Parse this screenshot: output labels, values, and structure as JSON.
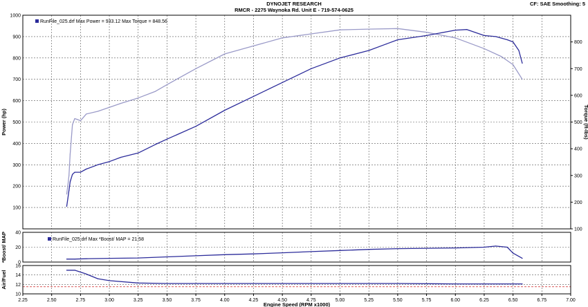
{
  "header": {
    "title": "DYNOJET RESEARCH",
    "subtitle": "RMCR - 2275 Waynoka Rd. Unit E - 719-574-0625",
    "cf_smoothing": "CF: SAE  Smoothing: 5"
  },
  "chart_data": [
    {
      "type": "line",
      "panel": "power-torque",
      "legend_text": "RunFile_025.drf Max Power = 933.12     Max Torque = 848.56",
      "ylabel_left": "Power (hp)",
      "ylabel_right": "Torque (ft-lbs)",
      "xlim": [
        2.25,
        7.0
      ],
      "ylim_left": [
        0,
        1000
      ],
      "ylim_right": [
        100,
        900
      ],
      "yticks_left": [
        "100",
        "200",
        "300",
        "400",
        "500",
        "600",
        "700",
        "800",
        "900",
        "1000"
      ],
      "yticks_right": [
        "100",
        "200",
        "300",
        "400",
        "500",
        "600",
        "700",
        "800"
      ],
      "grid": true,
      "series": [
        {
          "role": "power",
          "axis": "left",
          "color": "#2b2b9a",
          "x": [
            2.63,
            2.64,
            2.65,
            2.66,
            2.68,
            2.7,
            2.75,
            2.8,
            2.9,
            3.0,
            3.1,
            3.25,
            3.4,
            3.5,
            3.75,
            4.0,
            4.25,
            4.5,
            4.75,
            5.0,
            5.25,
            5.4,
            5.5,
            5.75,
            6.0,
            6.1,
            6.25,
            6.35,
            6.45,
            6.5,
            6.55,
            6.58
          ],
          "y": [
            105,
            140,
            180,
            220,
            255,
            265,
            265,
            280,
            300,
            315,
            335,
            355,
            395,
            420,
            480,
            555,
            620,
            685,
            750,
            800,
            835,
            865,
            885,
            905,
            930,
            933,
            905,
            900,
            885,
            875,
            835,
            775
          ]
        },
        {
          "role": "torque",
          "axis": "right",
          "color": "#9a9ac8",
          "x": [
            2.63,
            2.64,
            2.65,
            2.66,
            2.68,
            2.7,
            2.72,
            2.75,
            2.8,
            2.9,
            3.0,
            3.1,
            3.25,
            3.4,
            3.5,
            3.75,
            4.0,
            4.25,
            4.5,
            4.75,
            5.0,
            5.25,
            5.5,
            5.75,
            6.0,
            6.25,
            6.4,
            6.5,
            6.58
          ],
          "y": [
            230,
            260,
            300,
            380,
            490,
            513,
            510,
            505,
            530,
            540,
            555,
            570,
            590,
            615,
            640,
            700,
            755,
            785,
            815,
            830,
            845,
            848,
            850,
            836,
            815,
            775,
            745,
            715,
            660
          ]
        }
      ]
    },
    {
      "type": "line",
      "panel": "boost",
      "legend_text": "RunFile_025.drf Max *Boost/ MAP = 21.58",
      "ylabel": "*Boost/ MAP",
      "xlim": [
        2.25,
        7.0
      ],
      "ylim": [
        0,
        40
      ],
      "yticks": [
        "0",
        "20",
        "40"
      ],
      "series": [
        {
          "role": "boost",
          "color": "#2b2b9a",
          "x": [
            2.63,
            2.7,
            2.8,
            3.0,
            3.25,
            3.5,
            3.75,
            4.0,
            4.25,
            4.5,
            4.75,
            5.0,
            5.25,
            5.5,
            5.75,
            6.0,
            6.25,
            6.35,
            6.45,
            6.5,
            6.58
          ],
          "y": [
            4,
            4,
            4.5,
            5,
            5.5,
            7,
            8.5,
            10,
            11,
            12.5,
            14,
            15.5,
            17,
            18,
            18.5,
            19,
            20,
            21.5,
            20,
            12,
            5
          ]
        }
      ]
    },
    {
      "type": "line",
      "panel": "air-fuel",
      "ylabel": "Air/Fuel",
      "xlim": [
        2.25,
        7.0
      ],
      "ylim": [
        10,
        16
      ],
      "yticks": [
        "10",
        "12",
        "14",
        "16"
      ],
      "reference_line": 11.5,
      "xlabel": "Engine Speed (RPM x1000)",
      "xticks": [
        "2.25",
        "2.50",
        "2.75",
        "3.00",
        "3.25",
        "3.50",
        "3.75",
        "4.00",
        "4.25",
        "4.50",
        "4.75",
        "5.00",
        "5.25",
        "5.50",
        "5.75",
        "6.00",
        "6.25",
        "6.50",
        "6.75",
        "7.00"
      ],
      "series": [
        {
          "role": "afr",
          "color": "#2b2b9a",
          "x": [
            2.63,
            2.7,
            2.8,
            2.9,
            3.0,
            3.25,
            3.5,
            3.75,
            4.0,
            4.5,
            5.0,
            5.5,
            6.0,
            6.25,
            6.5,
            6.58
          ],
          "y": [
            15,
            15,
            14.2,
            13.2,
            12.8,
            12.3,
            12.2,
            12.2,
            12.2,
            12.2,
            12.2,
            12.2,
            12.1,
            12.1,
            12.1,
            12.1
          ]
        }
      ]
    }
  ]
}
